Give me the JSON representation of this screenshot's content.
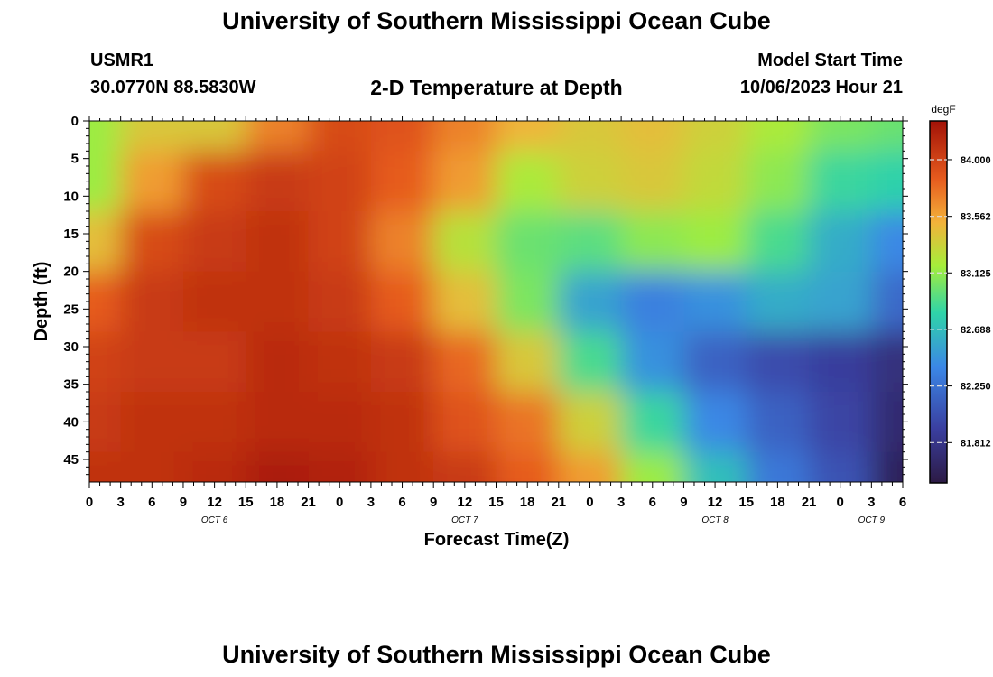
{
  "header": {
    "title": "University of Southern Mississippi Ocean Cube",
    "station": "USMR1",
    "coords": "30.0770N  88.5830W",
    "subtitle": "2-D Temperature at Depth",
    "model_label": "Model Start Time",
    "model_time": "10/06/2023 Hour 21"
  },
  "footer": {
    "title": "University of Southern Mississippi Ocean Cube"
  },
  "chart_data": {
    "type": "heatmap",
    "title": "2-D Temperature at Depth",
    "xlabel": "Forecast Time(Z)",
    "ylabel": "Depth (ft)",
    "x_tick_labels": [
      "0",
      "3",
      "6",
      "9",
      "12",
      "15",
      "18",
      "21",
      "0",
      "3",
      "6",
      "9",
      "12",
      "15",
      "18",
      "21",
      "0",
      "3",
      "6",
      "9",
      "12",
      "15",
      "18",
      "21",
      "0",
      "3",
      "6"
    ],
    "date_labels": [
      {
        "label": "OCT 6",
        "tick_index": 4
      },
      {
        "label": "OCT 7",
        "tick_index": 12
      },
      {
        "label": "OCT 8",
        "tick_index": 20
      },
      {
        "label": "OCT 9",
        "tick_index": 25
      }
    ],
    "y_ticks": [
      0,
      5,
      10,
      15,
      20,
      25,
      30,
      35,
      40,
      45
    ],
    "ylim": [
      48,
      0
    ],
    "colorbar": {
      "unit": "degF",
      "ticks": [
        "84.000",
        "83.562",
        "83.125",
        "82.688",
        "82.250",
        "81.812"
      ],
      "range": [
        81.5,
        84.3
      ]
    },
    "time_hours": [
      0,
      6,
      12,
      18,
      24,
      30,
      36,
      42,
      48,
      54,
      60,
      66,
      72,
      78
    ],
    "depths_ft": [
      0,
      8,
      16,
      24,
      32,
      40,
      48
    ],
    "values_degF": [
      [
        83.15,
        83.4,
        83.4,
        83.7,
        83.95,
        83.9,
        83.7,
        83.5,
        83.4,
        83.45,
        83.35,
        83.2,
        83.05,
        83.0
      ],
      [
        83.15,
        83.6,
        83.95,
        84.05,
        84.0,
        83.85,
        83.6,
        83.2,
        83.35,
        83.4,
        83.3,
        83.1,
        82.85,
        82.8
      ],
      [
        83.45,
        83.95,
        84.05,
        84.1,
        84.0,
        83.7,
        83.25,
        83.0,
        82.95,
        83.1,
        83.15,
        82.9,
        82.6,
        82.4
      ],
      [
        83.85,
        84.05,
        84.1,
        84.1,
        84.05,
        83.85,
        83.45,
        83.05,
        82.55,
        82.35,
        82.45,
        82.6,
        82.55,
        82.2
      ],
      [
        84.0,
        84.05,
        84.05,
        84.15,
        84.1,
        84.05,
        83.8,
        83.4,
        82.9,
        82.45,
        82.15,
        82.0,
        81.9,
        81.75
      ],
      [
        84.05,
        84.1,
        84.1,
        84.15,
        84.15,
        84.1,
        83.9,
        83.75,
        83.35,
        82.85,
        82.4,
        82.15,
        81.95,
        81.7
      ],
      [
        84.1,
        84.1,
        84.15,
        84.25,
        84.2,
        84.1,
        84.05,
        83.85,
        83.6,
        83.15,
        82.7,
        82.3,
        82.05,
        81.6
      ]
    ]
  }
}
